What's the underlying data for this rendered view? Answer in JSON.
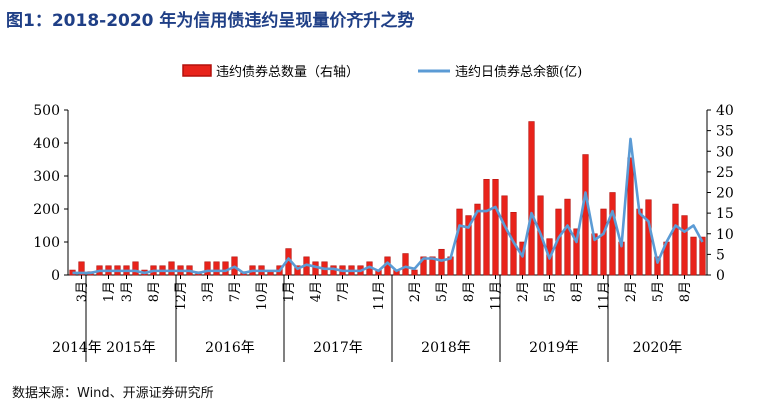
{
  "title": "图1：2018-2020 年为信用债违约呈现量价齐升之势",
  "source": "数据来源：Wind、开源证券研究所",
  "colors": {
    "bar": "#e8231b",
    "bar_edge": "#b3110c",
    "line": "#5b9bd5",
    "title": "#1f3f86"
  },
  "chart_data": {
    "type": "bar+line",
    "legend": {
      "position": "top",
      "bar_label": "违约债券总数量（右轴）",
      "line_label": "违约日债券总余额(亿)"
    },
    "y_left": {
      "min": 0,
      "max": 500,
      "ticks": [
        "0",
        "100",
        "200",
        "300",
        "400",
        "500"
      ]
    },
    "y_right": {
      "min": 0,
      "max": 40,
      "ticks": [
        "0",
        "5",
        "10",
        "15",
        "20",
        "25",
        "30",
        "35",
        "40"
      ]
    },
    "tick_labels": [
      {
        "i": 1,
        "label": "3月"
      },
      {
        "i": 4,
        "label": "1月"
      },
      {
        "i": 6,
        "label": "3月"
      },
      {
        "i": 9,
        "label": "8月"
      },
      {
        "i": 12,
        "label": "12月"
      },
      {
        "i": 15,
        "label": "3月"
      },
      {
        "i": 18,
        "label": "7月"
      },
      {
        "i": 21,
        "label": "10月"
      },
      {
        "i": 24,
        "label": "1月"
      },
      {
        "i": 27,
        "label": "4月"
      },
      {
        "i": 30,
        "label": "7月"
      },
      {
        "i": 34,
        "label": "11月"
      },
      {
        "i": 38,
        "label": "2月"
      },
      {
        "i": 41,
        "label": "5月"
      },
      {
        "i": 44,
        "label": "8月"
      },
      {
        "i": 47,
        "label": "11月"
      },
      {
        "i": 50,
        "label": "2月"
      },
      {
        "i": 53,
        "label": "5月"
      },
      {
        "i": 56,
        "label": "8月"
      },
      {
        "i": 59,
        "label": "11月"
      },
      {
        "i": 62,
        "label": "2月"
      },
      {
        "i": 65,
        "label": "5月"
      },
      {
        "i": 68,
        "label": "8月"
      }
    ],
    "year_groups": [
      {
        "label": "2014年",
        "start": 0,
        "end": 1
      },
      {
        "label": "2015年",
        "start": 2,
        "end": 11
      },
      {
        "label": "2016年",
        "start": 12,
        "end": 23
      },
      {
        "label": "2017年",
        "start": 24,
        "end": 35
      },
      {
        "label": "2018年",
        "start": 36,
        "end": 47
      },
      {
        "label": "2019年",
        "start": 48,
        "end": 59
      },
      {
        "label": "2020年",
        "start": 60,
        "end": 70
      }
    ],
    "bar_values": [
      15,
      40,
      10,
      28,
      28,
      28,
      28,
      40,
      15,
      28,
      28,
      40,
      28,
      28,
      10,
      40,
      40,
      40,
      55,
      10,
      28,
      28,
      10,
      28,
      80,
      28,
      55,
      40,
      40,
      28,
      28,
      28,
      28,
      40,
      15,
      55,
      15,
      65,
      15,
      55,
      55,
      78,
      55,
      200,
      180,
      215,
      290,
      290,
      240,
      190,
      100,
      465,
      240,
      110,
      200,
      230,
      140,
      365,
      125,
      200,
      250,
      100,
      355,
      200,
      228,
      55,
      100,
      215,
      180,
      115,
      115
    ],
    "line_values": [
      0.5,
      0.5,
      0.5,
      1,
      1,
      1,
      1,
      1,
      0.5,
      1,
      1,
      1,
      1,
      1,
      0.5,
      1,
      1,
      1,
      2,
      0.5,
      1,
      1,
      1,
      1,
      4,
      1.5,
      2.5,
      2,
      1.5,
      1.5,
      1,
      1,
      1,
      2,
      1,
      3,
      1,
      2,
      1.5,
      4,
      4,
      3.5,
      4,
      12,
      11.5,
      15.5,
      15.5,
      16.5,
      12,
      8,
      4.5,
      15,
      10,
      4,
      9,
      12,
      8,
      20,
      8.5,
      10,
      15.5,
      7,
      33,
      15,
      13,
      3,
      8,
      12,
      10.5,
      12,
      8
    ]
  }
}
